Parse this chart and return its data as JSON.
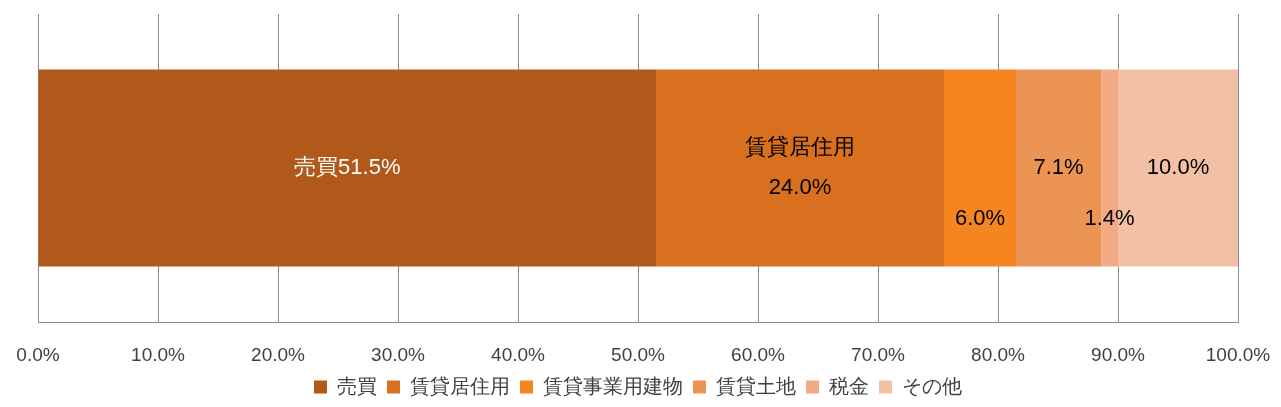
{
  "chart_data": {
    "type": "bar",
    "orientation": "horizontal",
    "stacked": true,
    "categories": [
      null
    ],
    "series": [
      {
        "name": "売買",
        "color": "#b0591a",
        "values": [
          51.5
        ],
        "value_labels": [
          "売買51.5%"
        ]
      },
      {
        "name": "賃貸居住用",
        "color": "#d8701f",
        "values": [
          24.0
        ],
        "value_labels": [
          "賃貸居住用\n24.0%"
        ]
      },
      {
        "name": "賃貸事業用建物",
        "color": "#f5851f",
        "values": [
          6.0
        ],
        "value_labels": [
          "6.0%"
        ]
      },
      {
        "name": "賃貸土地",
        "color": "#ec9454",
        "values": [
          7.1
        ],
        "value_labels": [
          "7.1%"
        ]
      },
      {
        "name": "税金",
        "color": "#f0aa85",
        "values": [
          1.4
        ],
        "value_labels": [
          "1.4%"
        ]
      },
      {
        "name": "その他",
        "color": "#f2c0a5",
        "values": [
          10.0
        ],
        "value_labels": [
          "10.0%"
        ]
      }
    ],
    "xlim": [
      0,
      100
    ],
    "xticks": [
      {
        "value": 0,
        "label": "0.0%"
      },
      {
        "value": 10,
        "label": "10.0%"
      },
      {
        "value": 20,
        "label": "20.0%"
      },
      {
        "value": 30,
        "label": "30.0%"
      },
      {
        "value": 40,
        "label": "40.0%"
      },
      {
        "value": 50,
        "label": "50.0%"
      },
      {
        "value": 60,
        "label": "60.0%"
      },
      {
        "value": 70,
        "label": "70.0%"
      },
      {
        "value": 80,
        "label": "80.0%"
      },
      {
        "value": 90,
        "label": "90.0%"
      },
      {
        "value": 100,
        "label": "100.0%"
      }
    ],
    "grid": "x",
    "legend": "bottom",
    "tick_labels": "x"
  }
}
